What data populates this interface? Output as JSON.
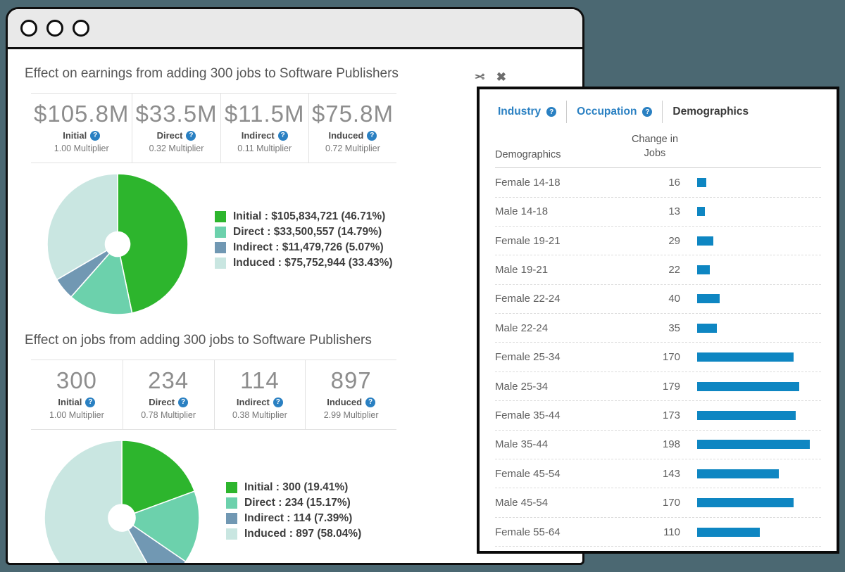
{
  "colors": {
    "background": "#4b6872",
    "accent_blue": "#2a80c2",
    "bar_blue": "#0e86c2",
    "initial": "#2db52d",
    "direct": "#6cd1ac",
    "indirect": "#7198b3",
    "induced": "#c9e6e1"
  },
  "icons": {
    "cut": "✂",
    "close": "✖",
    "help": "?"
  },
  "sections": [
    {
      "title": "Effect on earnings from adding 300 jobs to Software Publishers",
      "stats": [
        {
          "value": "$105.8M",
          "label": "Initial",
          "multiplier": "1.00 Multiplier"
        },
        {
          "value": "$33.5M",
          "label": "Direct",
          "multiplier": "0.32 Multiplier"
        },
        {
          "value": "$11.5M",
          "label": "Indirect",
          "multiplier": "0.11 Multiplier"
        },
        {
          "value": "$75.8M",
          "label": "Induced",
          "multiplier": "0.72 Multiplier"
        }
      ],
      "legend": [
        {
          "label": "Initial : $105,834,721 (46.71%)",
          "color_key": "initial"
        },
        {
          "label": "Direct : $33,500,557 (14.79%)",
          "color_key": "direct"
        },
        {
          "label": "Indirect : $11,479,726 (5.07%)",
          "color_key": "indirect"
        },
        {
          "label": "Induced : $75,752,944 (33.43%)",
          "color_key": "induced"
        }
      ]
    },
    {
      "title": "Effect on jobs from adding 300 jobs to Software Publishers",
      "stats": [
        {
          "value": "300",
          "label": "Initial",
          "multiplier": "1.00 Multiplier"
        },
        {
          "value": "234",
          "label": "Direct",
          "multiplier": "0.78 Multiplier"
        },
        {
          "value": "114",
          "label": "Indirect",
          "multiplier": "0.38 Multiplier"
        },
        {
          "value": "897",
          "label": "Induced",
          "multiplier": "2.99 Multiplier"
        }
      ],
      "legend": [
        {
          "label": "Initial : 300 (19.41%)",
          "color_key": "initial"
        },
        {
          "label": "Direct : 234 (15.17%)",
          "color_key": "direct"
        },
        {
          "label": "Indirect : 114 (7.39%)",
          "color_key": "indirect"
        },
        {
          "label": "Induced : 897 (58.04%)",
          "color_key": "induced"
        }
      ]
    }
  ],
  "chart_data": [
    {
      "type": "pie",
      "donut": true,
      "title": "Effect on earnings from adding 300 jobs to Software Publishers",
      "labels": [
        "Initial",
        "Direct",
        "Indirect",
        "Induced"
      ],
      "values": [
        105834721,
        33500557,
        11479726,
        75752944
      ],
      "percents": [
        46.71,
        14.79,
        5.07,
        33.43
      ],
      "colors": [
        "#2db52d",
        "#6cd1ac",
        "#7198b3",
        "#c9e6e1"
      ],
      "start_angle": "top",
      "direction": "clockwise",
      "legend_position": "right"
    },
    {
      "type": "pie",
      "donut": true,
      "title": "Effect on jobs from adding 300 jobs to Software Publishers",
      "labels": [
        "Initial",
        "Direct",
        "Indirect",
        "Induced"
      ],
      "values": [
        300,
        234,
        114,
        897
      ],
      "percents": [
        19.41,
        15.17,
        7.39,
        58.04
      ],
      "colors": [
        "#2db52d",
        "#6cd1ac",
        "#7198b3",
        "#c9e6e1"
      ],
      "start_angle": "top",
      "direction": "clockwise",
      "legend_position": "right"
    },
    {
      "type": "bar",
      "orientation": "horizontal",
      "title": "Change in Jobs by Demographics",
      "categories": [
        "Female 14-18",
        "Male 14-18",
        "Female 19-21",
        "Male 19-21",
        "Female 22-24",
        "Male 22-24",
        "Female 25-34",
        "Male 25-34",
        "Female 35-44",
        "Male 35-44",
        "Female 45-54",
        "Male 45-54",
        "Female 55-64"
      ],
      "values": [
        16,
        13,
        29,
        22,
        40,
        35,
        170,
        179,
        173,
        198,
        143,
        170,
        110
      ],
      "bar_color": "#0e86c2"
    }
  ],
  "panel": {
    "tabs": [
      {
        "label": "Industry",
        "has_help": true,
        "active": false
      },
      {
        "label": "Occupation",
        "has_help": true,
        "active": false
      },
      {
        "label": "Demographics",
        "has_help": false,
        "active": true
      }
    ],
    "table": {
      "col_demographics": "Demographics",
      "col_change_line1": "Change in",
      "col_change_line2": "Jobs",
      "rows": [
        {
          "label": "Female 14-18",
          "value": 16
        },
        {
          "label": "Male 14-18",
          "value": 13
        },
        {
          "label": "Female 19-21",
          "value": 29
        },
        {
          "label": "Male 19-21",
          "value": 22
        },
        {
          "label": "Female 22-24",
          "value": 40
        },
        {
          "label": "Male 22-24",
          "value": 35
        },
        {
          "label": "Female 25-34",
          "value": 170
        },
        {
          "label": "Male 25-34",
          "value": 179
        },
        {
          "label": "Female 35-44",
          "value": 173
        },
        {
          "label": "Male 35-44",
          "value": 198
        },
        {
          "label": "Female 45-54",
          "value": 143
        },
        {
          "label": "Male 45-54",
          "value": 170
        },
        {
          "label": "Female 55-64",
          "value": 110
        }
      ]
    }
  }
}
